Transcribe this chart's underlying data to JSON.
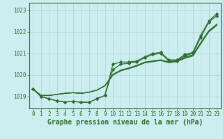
{
  "title": "Graphe pression niveau de la mer (hPa)",
  "bg_color": "#cceef0",
  "grid_color": "#aad4d8",
  "line_color": "#2d6e2d",
  "marker_color": "#2d6e2d",
  "xlim": [
    -0.5,
    23.5
  ],
  "ylim": [
    1018.45,
    1023.35
  ],
  "yticks": [
    1019,
    1020,
    1021,
    1022,
    1023
  ],
  "xticks": [
    0,
    1,
    2,
    3,
    4,
    5,
    6,
    7,
    8,
    9,
    10,
    11,
    12,
    13,
    14,
    15,
    16,
    17,
    18,
    19,
    20,
    21,
    22,
    23
  ],
  "series": [
    {
      "y": [
        1019.35,
        1019.0,
        1018.9,
        1018.8,
        1018.75,
        1018.77,
        1018.74,
        1018.73,
        1018.9,
        1019.05,
        1020.5,
        1020.6,
        1020.6,
        1020.65,
        1020.85,
        1021.0,
        1021.05,
        1020.7,
        1020.7,
        1020.95,
        1021.05,
        1021.85,
        1022.5,
        1022.85
      ],
      "marker": true,
      "lw": 0.9
    },
    {
      "y": [
        1019.35,
        1019.0,
        1018.9,
        1018.8,
        1018.75,
        1018.77,
        1018.74,
        1018.73,
        1018.9,
        1019.05,
        1020.25,
        1020.5,
        1020.55,
        1020.6,
        1020.8,
        1020.95,
        1021.0,
        1020.65,
        1020.65,
        1020.9,
        1021.0,
        1021.75,
        1022.45,
        1022.75
      ],
      "marker": true,
      "lw": 0.9
    },
    {
      "y": [
        1019.35,
        1019.05,
        1019.05,
        1019.1,
        1019.15,
        1019.18,
        1019.15,
        1019.2,
        1019.3,
        1019.5,
        1020.0,
        1020.2,
        1020.3,
        1020.42,
        1020.57,
        1020.65,
        1020.7,
        1020.6,
        1020.65,
        1020.82,
        1020.93,
        1021.5,
        1022.05,
        1022.35
      ],
      "marker": false,
      "lw": 0.9
    },
    {
      "y": [
        1019.35,
        1019.05,
        1019.05,
        1019.1,
        1019.15,
        1019.18,
        1019.15,
        1019.2,
        1019.3,
        1019.5,
        1020.0,
        1020.2,
        1020.3,
        1020.42,
        1020.57,
        1020.62,
        1020.67,
        1020.57,
        1020.62,
        1020.77,
        1020.88,
        1021.45,
        1022.0,
        1022.3
      ],
      "marker": false,
      "lw": 0.9
    },
    {
      "y": [
        1019.35,
        1019.05,
        1019.05,
        1019.1,
        1019.15,
        1019.18,
        1019.15,
        1019.2,
        1019.3,
        1019.5,
        1020.03,
        1020.23,
        1020.33,
        1020.45,
        1020.6,
        1020.65,
        1020.7,
        1020.6,
        1020.65,
        1020.82,
        1020.93,
        1021.5,
        1022.05,
        1022.35
      ],
      "marker": false,
      "lw": 0.9
    }
  ],
  "title_fontsize": 7,
  "tick_fontsize": 5.5
}
